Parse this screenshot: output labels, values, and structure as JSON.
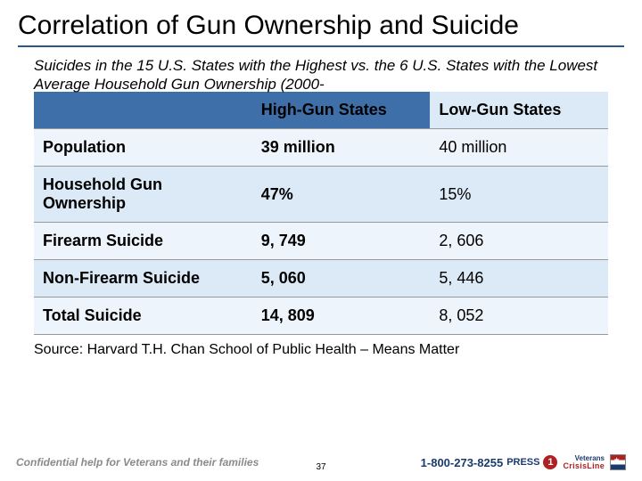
{
  "title": "Correlation of Gun Ownership and Suicide",
  "subtitle": "Suicides in the 15 U.S. States with the Highest vs. the 6 U.S. States with the Lowest Average Household Gun Ownership (2000-",
  "table": {
    "columns": [
      "",
      "High-Gun States",
      "Low-Gun States"
    ],
    "rows": [
      {
        "cat": "Population",
        "high": "39 million",
        "low": "40 million"
      },
      {
        "cat": "Household Gun Ownership",
        "high": "47%",
        "low": "15%"
      },
      {
        "cat": "Firearm Suicide",
        "high": "9, 749",
        "low": "2, 606"
      },
      {
        "cat": "Non-Firearm Suicide",
        "high": "5, 060",
        "low": "5, 446"
      },
      {
        "cat": "Total Suicide",
        "high": "14, 809",
        "low": "8, 052"
      }
    ],
    "header_bg_main": "#3f6fa8",
    "header_bg_low": "#dceaf7",
    "row_odd_bg": "#eef4fb",
    "row_even_bg": "#dceaf7",
    "border_color": "#999999",
    "title_underline_color": "#2a5a8a",
    "font_size_header": 18,
    "font_size_cell": 18
  },
  "source": "Source: Harvard T.H. Chan School of Public Health – Means Matter",
  "footer": {
    "left_text": "Confidential help for Veterans and their families",
    "page_number": "37",
    "brand_top": "Veterans",
    "brand_bottom": "CrisisLine",
    "phone": "1-800-273-8255",
    "press_label": "PRESS",
    "press_digit": "1"
  },
  "colors": {
    "background": "#ffffff",
    "text": "#000000",
    "footer_gray": "#8a8a8a",
    "brand_blue": "#1a3a6e",
    "brand_red": "#b02020"
  }
}
